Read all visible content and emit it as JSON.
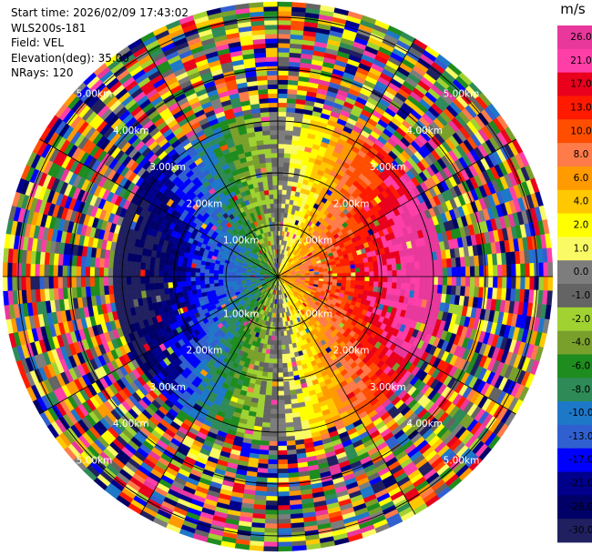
{
  "header": {
    "start_time": "Start time: 2026/02/09 17:43:02",
    "station": "WLS200s-181",
    "field": "Field: VEL",
    "elevation": "Elevation(deg): 35.00",
    "nrays": "NRays: 120"
  },
  "chart_data": {
    "type": "heatmap",
    "projection": "polar-ppi",
    "field": "VEL",
    "nrays": 120,
    "max_range_km": 5.3,
    "range_rings_km": [
      1.0,
      2.0,
      3.0,
      4.0,
      5.0
    ],
    "range_labels": [
      {
        "ring": 1,
        "text": "1.00km"
      },
      {
        "ring": 2,
        "text": "2.00km"
      },
      {
        "ring": 3,
        "text": "3.00km"
      },
      {
        "ring": 4,
        "text": "4.00km"
      },
      {
        "ring": 5,
        "text": "5.00km"
      }
    ],
    "colorbar": {
      "unit": "m/s",
      "levels": [
        {
          "label": "26.0",
          "color": "#e8389c"
        },
        {
          "label": "21.0",
          "color": "#ff3ea8"
        },
        {
          "label": "17.0",
          "color": "#e8001c"
        },
        {
          "label": "13.0",
          "color": "#ff1a00"
        },
        {
          "label": "10.0",
          "color": "#ff4e00"
        },
        {
          "label": "8.0",
          "color": "#ff7b4a"
        },
        {
          "label": "6.0",
          "color": "#ff9a00"
        },
        {
          "label": "4.0",
          "color": "#ffc800"
        },
        {
          "label": "2.0",
          "color": "#ffff00"
        },
        {
          "label": "1.0",
          "color": "#fafa64"
        },
        {
          "label": "0.0",
          "color": "#7d7d7d"
        },
        {
          "label": "-1.0",
          "color": "#646464"
        },
        {
          "label": "-2.0",
          "color": "#a0d232"
        },
        {
          "label": "-4.0",
          "color": "#7aa02c"
        },
        {
          "label": "-6.0",
          "color": "#1e8c1e"
        },
        {
          "label": "-8.0",
          "color": "#2e8b57"
        },
        {
          "label": "-10.0",
          "color": "#1e78c8"
        },
        {
          "label": "-13.0",
          "color": "#3060d0"
        },
        {
          "label": "-17.0",
          "color": "#0000ff"
        },
        {
          "label": "-21.0",
          "color": "#00008b"
        },
        {
          "label": "-26.0",
          "color": "#000066"
        },
        {
          "label": "-30.0",
          "color": "#202060"
        }
      ]
    }
  }
}
